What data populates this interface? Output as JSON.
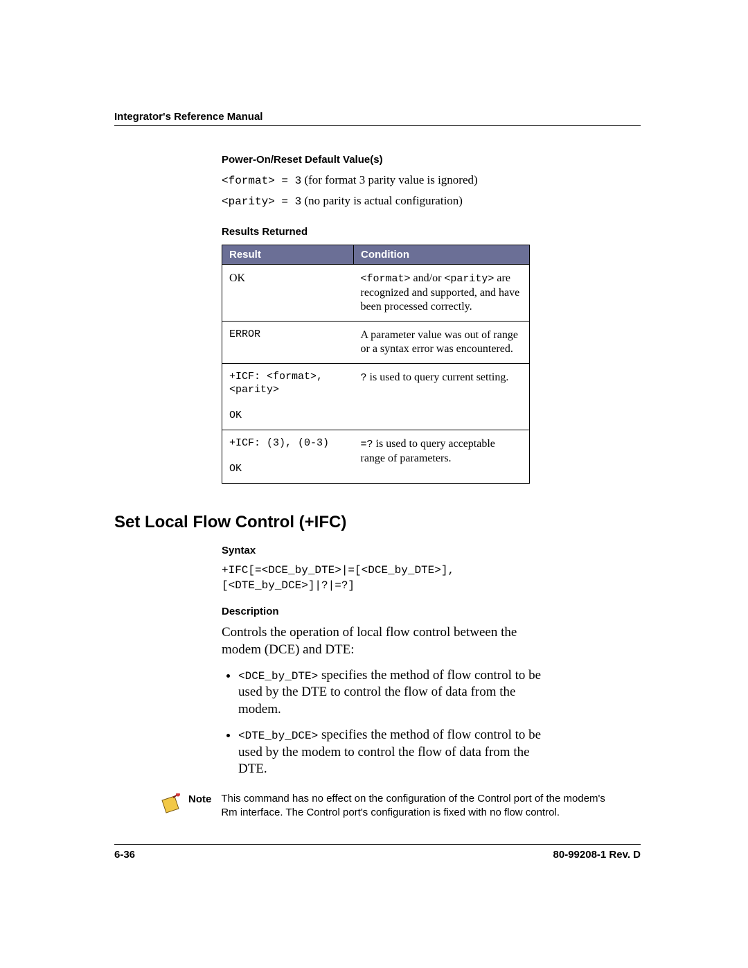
{
  "header": {
    "title": "Integrator's Reference Manual"
  },
  "defaults": {
    "heading": "Power-On/Reset Default Value(s)",
    "line1_code": "<format> = 3",
    "line1_text": "  (for format 3 parity value is ignored)",
    "line2_code": "<parity> = 3",
    "line2_text": "  (no parity is actual configuration)"
  },
  "results": {
    "heading": "Results Returned",
    "header_bg": "#6b6f96",
    "header_fg": "#ffffff",
    "columns": [
      "Result",
      "Condition"
    ],
    "rows": [
      {
        "result": "OK",
        "result_mono": false,
        "condition_html": "<span class='cell-mono'>&lt;format&gt;</span> and/or <span class='cell-mono'>&lt;parity&gt;</span> are recognized and supported, and have been processed correctly."
      },
      {
        "result": "ERROR",
        "result_mono": true,
        "condition_html": "A parameter value was out of range or a syntax error was encountered."
      },
      {
        "result": "+ICF: <format>,\n<parity>\n\nOK",
        "result_mono": true,
        "condition_html": "<span class='cell-mono'>?</span> is used to query current setting."
      },
      {
        "result": "+ICF: (3), (0-3)\n\nOK",
        "result_mono": true,
        "condition_html": "<span class='cell-mono'>=?</span> is used to query acceptable range of parameters."
      }
    ]
  },
  "section": {
    "title": "Set Local Flow Control (+IFC)",
    "syntax_heading": "Syntax",
    "syntax_text": "+IFC[=<DCE_by_DTE>|=[<DCE_by_DTE>],\n[<DTE_by_DCE>]|?|=?]",
    "description_heading": "Description",
    "description_intro": "Controls the operation of local flow control between the modem (DCE) and DTE:",
    "bullets": [
      {
        "code": "<DCE_by_DTE>",
        "text": " specifies the method of flow control to be used by the DTE to control the flow of data from the modem."
      },
      {
        "code": "<DTE_by_DCE>",
        "text": " specifies the method of flow control to be used by the modem to control the flow of data from the DTE."
      }
    ]
  },
  "note": {
    "label": "Note",
    "text": "This command has no effect on the configuration of the Control port of the modem's Rm interface. The Control port's configuration is fixed with no flow control.",
    "pin_fill": "#f2c846",
    "pin_head": "#d23a3a"
  },
  "footer": {
    "left": "6-36",
    "right": "80-99208-1 Rev. D"
  }
}
